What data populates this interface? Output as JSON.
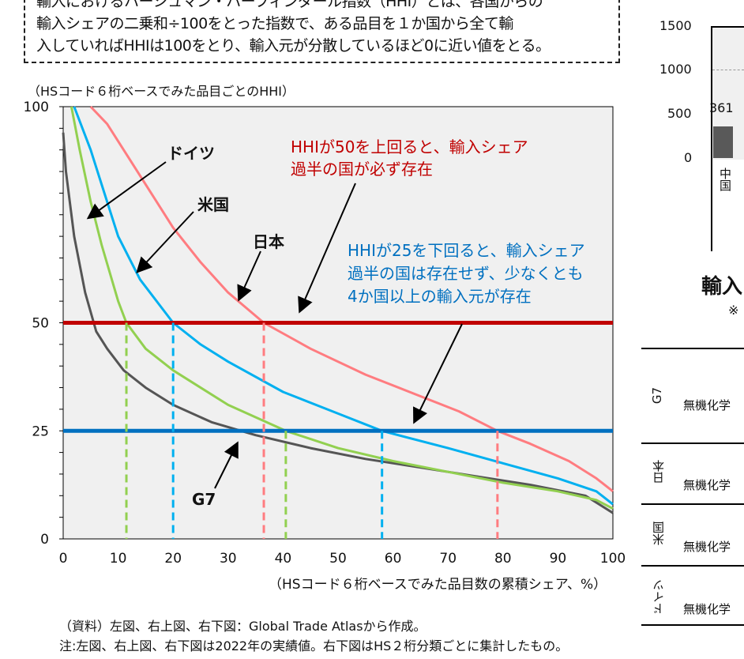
{
  "note": {
    "lines": [
      "輸入におけるハーシュマン・ハーフィンダール指数（HHI）とは、各国からの",
      "輸入シェアの二乗和÷100をとった指数で、ある品目を１か国から全て輸",
      "入していればHHIは100をとり、輸入元が分散しているほど0に近い値をとる。"
    ]
  },
  "chart_data": {
    "type": "line",
    "ylabel": "（HSコード６桁ベースでみた品目ごとのHHI）",
    "xlabel": "（HSコード６桁ベースでみた品目数の累積シェア、%）",
    "xlim": [
      0,
      100
    ],
    "ylim": [
      0,
      100
    ],
    "xticks": [
      0,
      10,
      20,
      30,
      40,
      50,
      60,
      70,
      80,
      90,
      100
    ],
    "yticks": [
      0,
      25,
      50,
      100
    ],
    "grid": false,
    "plot_bg": "#f0f0f0",
    "series": [
      {
        "name": "G7",
        "color": "#555555",
        "x": [
          0,
          0.5,
          2,
          4,
          6,
          8,
          11,
          15,
          20,
          27,
          35,
          45,
          55,
          65,
          75,
          85,
          95,
          100
        ],
        "y": [
          94,
          85,
          70,
          57,
          48,
          44,
          39,
          35,
          31,
          27,
          24,
          21,
          18.5,
          16.5,
          14.5,
          12.5,
          10,
          6
        ]
      },
      {
        "name": "ドイツ",
        "color": "#92d050",
        "x": [
          1.5,
          3,
          5,
          7,
          10,
          11.5,
          15,
          20,
          30,
          40.5,
          50,
          60,
          70,
          80,
          90,
          97,
          100
        ],
        "y": [
          100,
          90,
          78,
          68,
          55,
          50,
          44,
          39,
          31,
          25,
          21,
          18,
          15.5,
          13,
          11,
          9,
          7
        ]
      },
      {
        "name": "米国",
        "color": "#00b0f0",
        "x": [
          2,
          5,
          7,
          10,
          14,
          20,
          25,
          30,
          40,
          50,
          58,
          70,
          80,
          90,
          97,
          100
        ],
        "y": [
          100,
          90,
          82,
          70,
          60,
          50,
          45,
          41,
          34,
          29,
          25,
          21,
          17.5,
          14,
          11,
          8
        ]
      },
      {
        "name": "日本",
        "color": "#ff7c80",
        "x": [
          5,
          8,
          12,
          16,
          20,
          25,
          30,
          36.5,
          45,
          55,
          65,
          72,
          79,
          85,
          92,
          97,
          100
        ],
        "y": [
          100,
          96,
          88,
          80,
          72,
          64,
          57,
          50,
          44,
          38,
          33,
          29.5,
          25,
          22,
          18,
          14,
          11
        ]
      }
    ],
    "hlines": [
      {
        "y": 50,
        "color": "#c00000"
      },
      {
        "y": 25,
        "color": "#0070c0"
      }
    ],
    "drop_lines": [
      {
        "x": 11.5,
        "y": 50,
        "color": "#92d050"
      },
      {
        "x": 20,
        "y": 50,
        "color": "#00b0f0"
      },
      {
        "x": 36.5,
        "y": 50,
        "color": "#ff7c80"
      },
      {
        "x": 40.5,
        "y": 25,
        "color": "#92d050"
      },
      {
        "x": 58,
        "y": 25,
        "color": "#00b0f0"
      },
      {
        "x": 79,
        "y": 25,
        "color": "#ff7c80"
      }
    ],
    "annotations": {
      "red": [
        "HHIが50を上回ると、輸入シェア",
        "過半の国が必ず存在"
      ],
      "blue": [
        "HHIが25を下回ると、輸入シェア",
        "過半の国は存在せず、少なくとも",
        "4か国以上の輸入元が存在"
      ]
    }
  },
  "right_chart": {
    "yticks": [
      "1500",
      "1000",
      "500",
      "0"
    ],
    "bar_label": "361",
    "category": "中国",
    "title": "輸入",
    "note_mark": "※"
  },
  "right_table": {
    "rows": [
      {
        "label": "G7",
        "value": "無機化学"
      },
      {
        "label": "日本",
        "value": "無機化学"
      },
      {
        "label": "米国",
        "value": "無機化学"
      },
      {
        "label": "ドイツ",
        "value": "無機化学"
      }
    ]
  },
  "footer": {
    "source": "（資料）左図、右上図、右下図：Global Trade Atlasから作成。",
    "note": "注:左図、右上図、右下図は2022年の実績値。右下図はHS２桁分類ごとに集計したもの。"
  }
}
